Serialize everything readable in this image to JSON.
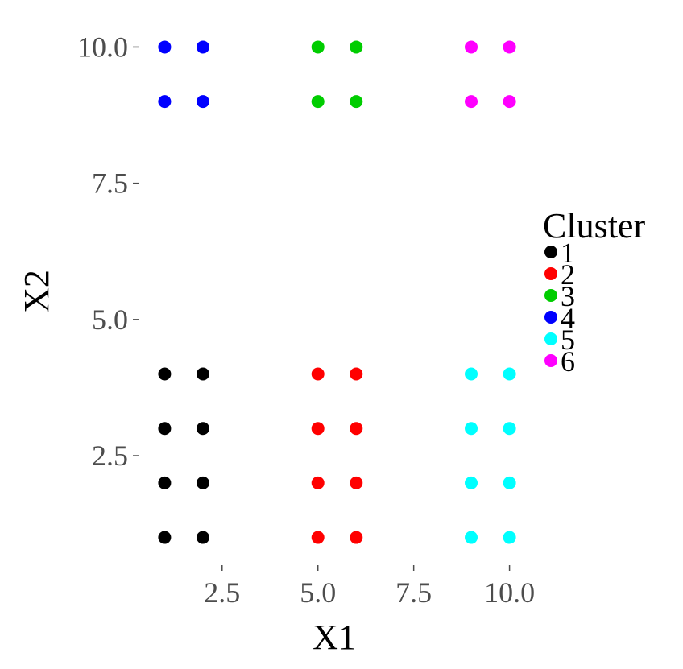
{
  "chart_data": {
    "type": "scatter",
    "title": "",
    "xlabel": "X1",
    "ylabel": "X2",
    "xlim": [
      0.55,
      10.45
    ],
    "ylim": [
      0.55,
      10.45
    ],
    "x_ticks": [
      2.5,
      5.0,
      7.5,
      10.0
    ],
    "x_tick_labels": [
      "2.5",
      "5.0",
      "7.5",
      "10.0"
    ],
    "y_ticks": [
      2.5,
      5.0,
      7.5,
      10.0
    ],
    "y_tick_labels": [
      "2.5",
      "5.0",
      "7.5",
      "10.0"
    ],
    "grid": false,
    "legend": {
      "title": "Cluster",
      "placement": "right"
    },
    "series": [
      {
        "name": "1",
        "color": "#000000",
        "points": [
          [
            1,
            1
          ],
          [
            2,
            1
          ],
          [
            1,
            2
          ],
          [
            2,
            2
          ],
          [
            1,
            3
          ],
          [
            2,
            3
          ],
          [
            1,
            4
          ],
          [
            2,
            4
          ]
        ]
      },
      {
        "name": "2",
        "color": "#ff0000",
        "points": [
          [
            5,
            1
          ],
          [
            6,
            1
          ],
          [
            5,
            2
          ],
          [
            6,
            2
          ],
          [
            5,
            3
          ],
          [
            6,
            3
          ],
          [
            5,
            4
          ],
          [
            6,
            4
          ]
        ]
      },
      {
        "name": "3",
        "color": "#00cd00",
        "points": [
          [
            5,
            9
          ],
          [
            6,
            9
          ],
          [
            5,
            10
          ],
          [
            6,
            10
          ]
        ]
      },
      {
        "name": "4",
        "color": "#0000ff",
        "points": [
          [
            1,
            9
          ],
          [
            2,
            9
          ],
          [
            1,
            10
          ],
          [
            2,
            10
          ]
        ]
      },
      {
        "name": "5",
        "color": "#00ffff",
        "points": [
          [
            9,
            1
          ],
          [
            10,
            1
          ],
          [
            9,
            2
          ],
          [
            10,
            2
          ],
          [
            9,
            3
          ],
          [
            10,
            3
          ],
          [
            9,
            4
          ],
          [
            10,
            4
          ]
        ]
      },
      {
        "name": "6",
        "color": "#ff00ff",
        "points": [
          [
            9,
            9
          ],
          [
            10,
            9
          ],
          [
            9,
            10
          ],
          [
            10,
            10
          ]
        ]
      }
    ]
  }
}
